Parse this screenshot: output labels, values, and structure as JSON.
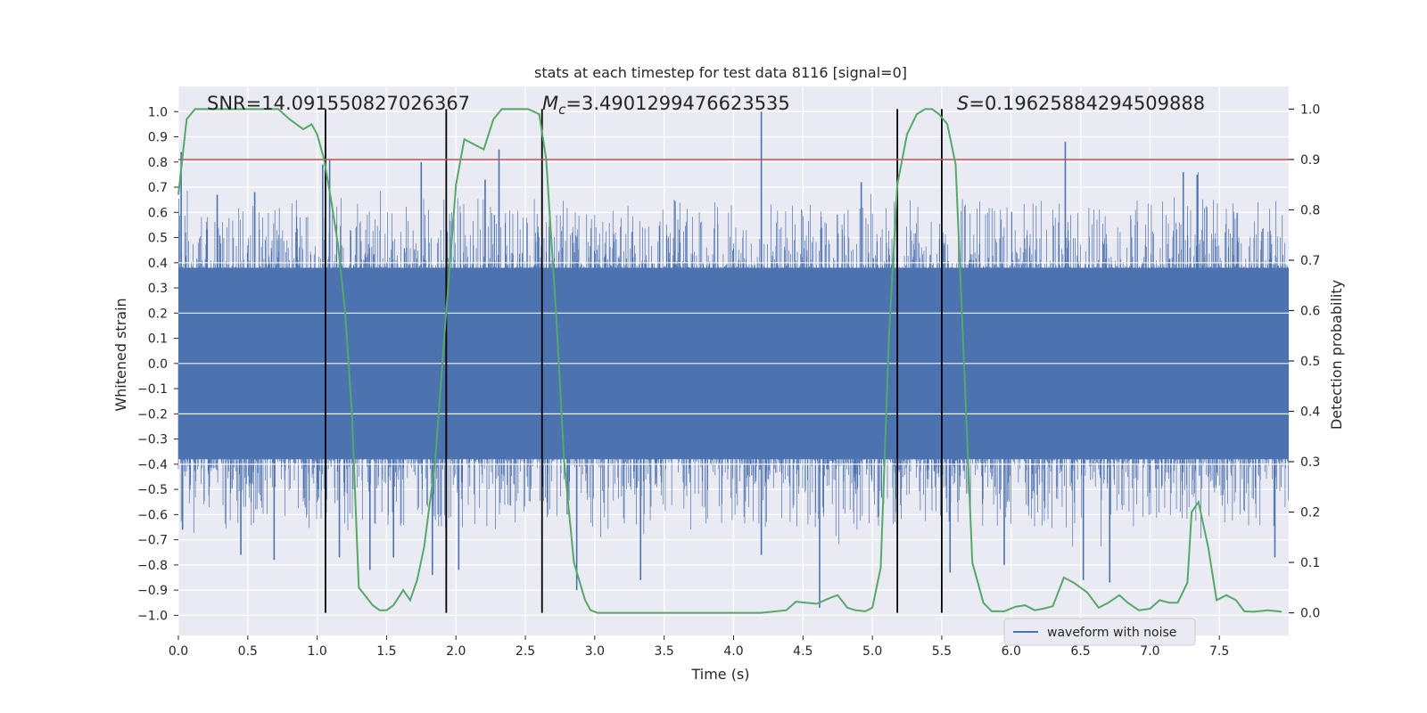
{
  "chart_data": {
    "type": "line",
    "title": "stats at each timestep for test data 8116 [signal=0]",
    "xlabel": "Time (s)",
    "ylabel": "Whitened strain",
    "y2label": "Detection probability",
    "xlim": [
      0.0,
      8.0
    ],
    "ylim": [
      -1.08,
      1.1
    ],
    "y2lim": [
      -0.045,
      1.045
    ],
    "x_ticks": [
      0.0,
      0.5,
      1.0,
      1.5,
      2.0,
      2.5,
      3.0,
      3.5,
      4.0,
      4.5,
      5.0,
      5.5,
      6.0,
      6.5,
      7.0,
      7.5
    ],
    "x_tick_labels": [
      "0.0",
      "0.5",
      "1.0",
      "1.5",
      "2.0",
      "2.5",
      "3.0",
      "3.5",
      "4.0",
      "4.5",
      "5.0",
      "5.5",
      "6.0",
      "6.5",
      "7.0",
      "7.5"
    ],
    "y_ticks": [
      -1.0,
      -0.9,
      -0.8,
      -0.7,
      -0.6,
      -0.5,
      -0.4,
      -0.3,
      -0.2,
      -0.1,
      0.0,
      0.1,
      0.2,
      0.3,
      0.4,
      0.5,
      0.6,
      0.7,
      0.8,
      0.9,
      1.0
    ],
    "y_tick_labels": [
      "−1.0",
      "−0.9",
      "−0.8",
      "−0.7",
      "−0.6",
      "−0.5",
      "−0.4",
      "−0.3",
      "−0.2",
      "−0.1",
      "0.0",
      "0.1",
      "0.2",
      "0.3",
      "0.4",
      "0.5",
      "0.6",
      "0.7",
      "0.8",
      "0.9",
      "1.0"
    ],
    "y2_ticks": [
      0.0,
      0.1,
      0.2,
      0.3,
      0.4,
      0.5,
      0.6,
      0.7,
      0.8,
      0.9,
      1.0
    ],
    "y2_tick_labels": [
      "0.0",
      "0.1",
      "0.2",
      "0.3",
      "0.4",
      "0.5",
      "0.6",
      "0.7",
      "0.8",
      "0.9",
      "1.0"
    ],
    "annotations": {
      "snr": "SNR=14.091550827026367",
      "mc_symbol": "M",
      "mc_sub": "c",
      "mc_value": "=3.4901299476623535",
      "s_symbol": "S",
      "s_value": "=0.19625884294509888"
    },
    "grid": true,
    "legend_location": "lower-right",
    "series": [
      {
        "name": "waveform with noise",
        "axis": "left",
        "color": "#4c72b0",
        "style": "dense noise waveform",
        "core_amplitude": 0.38,
        "spikes": [
          [
            0.02,
            0.84
          ],
          [
            0.03,
            -0.66
          ],
          [
            0.28,
            0.67
          ],
          [
            0.45,
            -0.76
          ],
          [
            0.55,
            0.68
          ],
          [
            0.69,
            -0.78
          ],
          [
            1.04,
            0.79
          ],
          [
            1.09,
            0.81
          ],
          [
            1.16,
            -0.77
          ],
          [
            1.38,
            -0.82
          ],
          [
            1.55,
            -0.77
          ],
          [
            1.75,
            0.8
          ],
          [
            1.83,
            -0.84
          ],
          [
            1.93,
            -0.8
          ],
          [
            2.02,
            -0.82
          ],
          [
            2.21,
            0.73
          ],
          [
            2.31,
            0.85
          ],
          [
            2.62,
            0.73
          ],
          [
            2.87,
            -0.9
          ],
          [
            3.33,
            -0.86
          ],
          [
            4.2,
            1.0
          ],
          [
            4.2,
            -0.76
          ],
          [
            4.62,
            -0.97
          ],
          [
            4.92,
            0.72
          ],
          [
            5.56,
            -0.83
          ],
          [
            5.95,
            -0.8
          ],
          [
            6.39,
            0.88
          ],
          [
            6.52,
            -0.86
          ],
          [
            6.71,
            -0.87
          ],
          [
            7.24,
            0.76
          ],
          [
            7.34,
            0.75
          ],
          [
            7.9,
            -0.77
          ]
        ]
      },
      {
        "name": "",
        "axis": "right",
        "color": "#55a868",
        "x": [
          0.0,
          0.06,
          0.12,
          0.2,
          0.4,
          0.6,
          0.72,
          0.8,
          0.9,
          0.96,
          1.0,
          1.05,
          1.1,
          1.15,
          1.2,
          1.25,
          1.3,
          1.4,
          1.45,
          1.5,
          1.55,
          1.62,
          1.67,
          1.72,
          1.77,
          1.85,
          1.93,
          2.0,
          2.06,
          2.13,
          2.2,
          2.27,
          2.33,
          2.42,
          2.52,
          2.6,
          2.65,
          2.72,
          2.78,
          2.85,
          2.93,
          2.97,
          3.02,
          3.2,
          3.5,
          3.8,
          4.0,
          4.2,
          4.38,
          4.45,
          4.52,
          4.6,
          4.7,
          4.75,
          4.82,
          4.88,
          4.95,
          5.0,
          5.06,
          5.12,
          5.18,
          5.25,
          5.32,
          5.38,
          5.43,
          5.48,
          5.54,
          5.6,
          5.66,
          5.72,
          5.8,
          5.86,
          5.95,
          6.03,
          6.1,
          6.17,
          6.23,
          6.3,
          6.38,
          6.45,
          6.55,
          6.63,
          6.7,
          6.78,
          6.84,
          6.92,
          7.0,
          7.07,
          7.14,
          7.2,
          7.27,
          7.3,
          7.35,
          7.42,
          7.48,
          7.55,
          7.62,
          7.68,
          7.75,
          7.85,
          7.95
        ],
        "y": [
          0.83,
          0.98,
          1.0,
          1.0,
          1.0,
          1.0,
          1.0,
          0.98,
          0.96,
          0.97,
          0.95,
          0.9,
          0.82,
          0.73,
          0.6,
          0.4,
          0.05,
          0.015,
          0.005,
          0.005,
          0.015,
          0.045,
          0.025,
          0.065,
          0.13,
          0.3,
          0.6,
          0.85,
          0.94,
          0.93,
          0.92,
          0.98,
          1.0,
          1.0,
          1.0,
          0.99,
          0.9,
          0.6,
          0.3,
          0.1,
          0.025,
          0.005,
          0.0,
          0.0,
          0.0,
          0.0,
          0.0,
          0.0,
          0.005,
          0.022,
          0.02,
          0.018,
          0.03,
          0.035,
          0.01,
          0.005,
          0.003,
          0.01,
          0.09,
          0.55,
          0.85,
          0.95,
          0.99,
          1.0,
          1.0,
          0.99,
          0.97,
          0.89,
          0.5,
          0.1,
          0.02,
          0.003,
          0.003,
          0.012,
          0.015,
          0.005,
          0.008,
          0.013,
          0.07,
          0.06,
          0.04,
          0.01,
          0.02,
          0.035,
          0.02,
          0.005,
          0.008,
          0.025,
          0.02,
          0.02,
          0.06,
          0.2,
          0.22,
          0.13,
          0.025,
          0.035,
          0.025,
          0.003,
          0.002,
          0.005,
          0.002
        ]
      }
    ],
    "threshold_line": {
      "axis": "right",
      "value": 0.9,
      "color": "#c44e52"
    },
    "event_markers": {
      "axis": "right",
      "color": "#000000",
      "x": [
        1.06,
        1.93,
        2.62,
        5.18,
        5.5
      ],
      "y_from": 0.0,
      "y_to": 1.0
    }
  }
}
